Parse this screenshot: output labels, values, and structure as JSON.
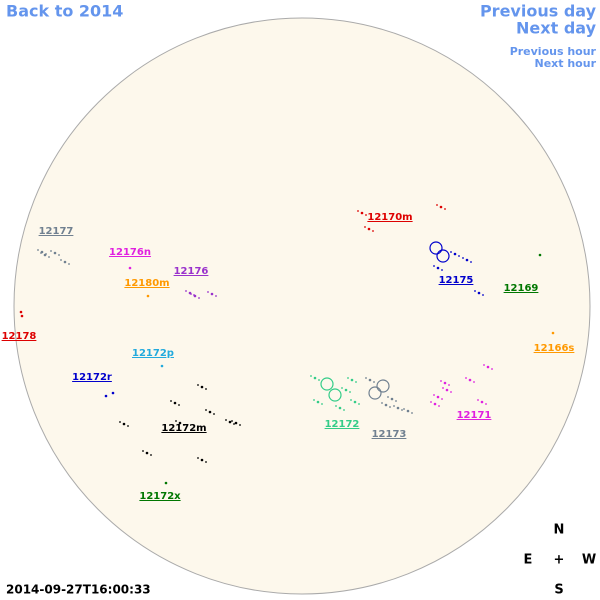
{
  "nav": {
    "back": "Back to 2014",
    "previous_day": "Previous day",
    "next_day": "Next day",
    "previous_hour": "Previous hour",
    "next_hour": "Next hour"
  },
  "regions": [
    {
      "label": "12177",
      "color": "#708090"
    },
    {
      "label": "12176n",
      "color": "#e020e0"
    },
    {
      "label": "12176",
      "color": "#9932cc"
    },
    {
      "label": "12180m",
      "color": "#ff9900"
    },
    {
      "label": "12178",
      "color": "#dd0000"
    },
    {
      "label": "12172p",
      "color": "#22aadd"
    },
    {
      "label": "12172r",
      "color": "#0000cc"
    },
    {
      "label": "12172m",
      "color": "#000000"
    },
    {
      "label": "12172x",
      "color": "#007700"
    },
    {
      "label": "12170m",
      "color": "#dd0000"
    },
    {
      "label": "12175",
      "color": "#0000cc"
    },
    {
      "label": "12169",
      "color": "#007700"
    },
    {
      "label": "12166s",
      "color": "#ff9900"
    },
    {
      "label": "12172",
      "color": "#33cc88"
    },
    {
      "label": "12173",
      "color": "#708090"
    },
    {
      "label": "12171",
      "color": "#e020e0"
    }
  ],
  "compass": {
    "north": "N",
    "east": "E",
    "center": "+",
    "west": "W",
    "south": "S"
  },
  "timestamp": "2014-09-27T16:00:33"
}
